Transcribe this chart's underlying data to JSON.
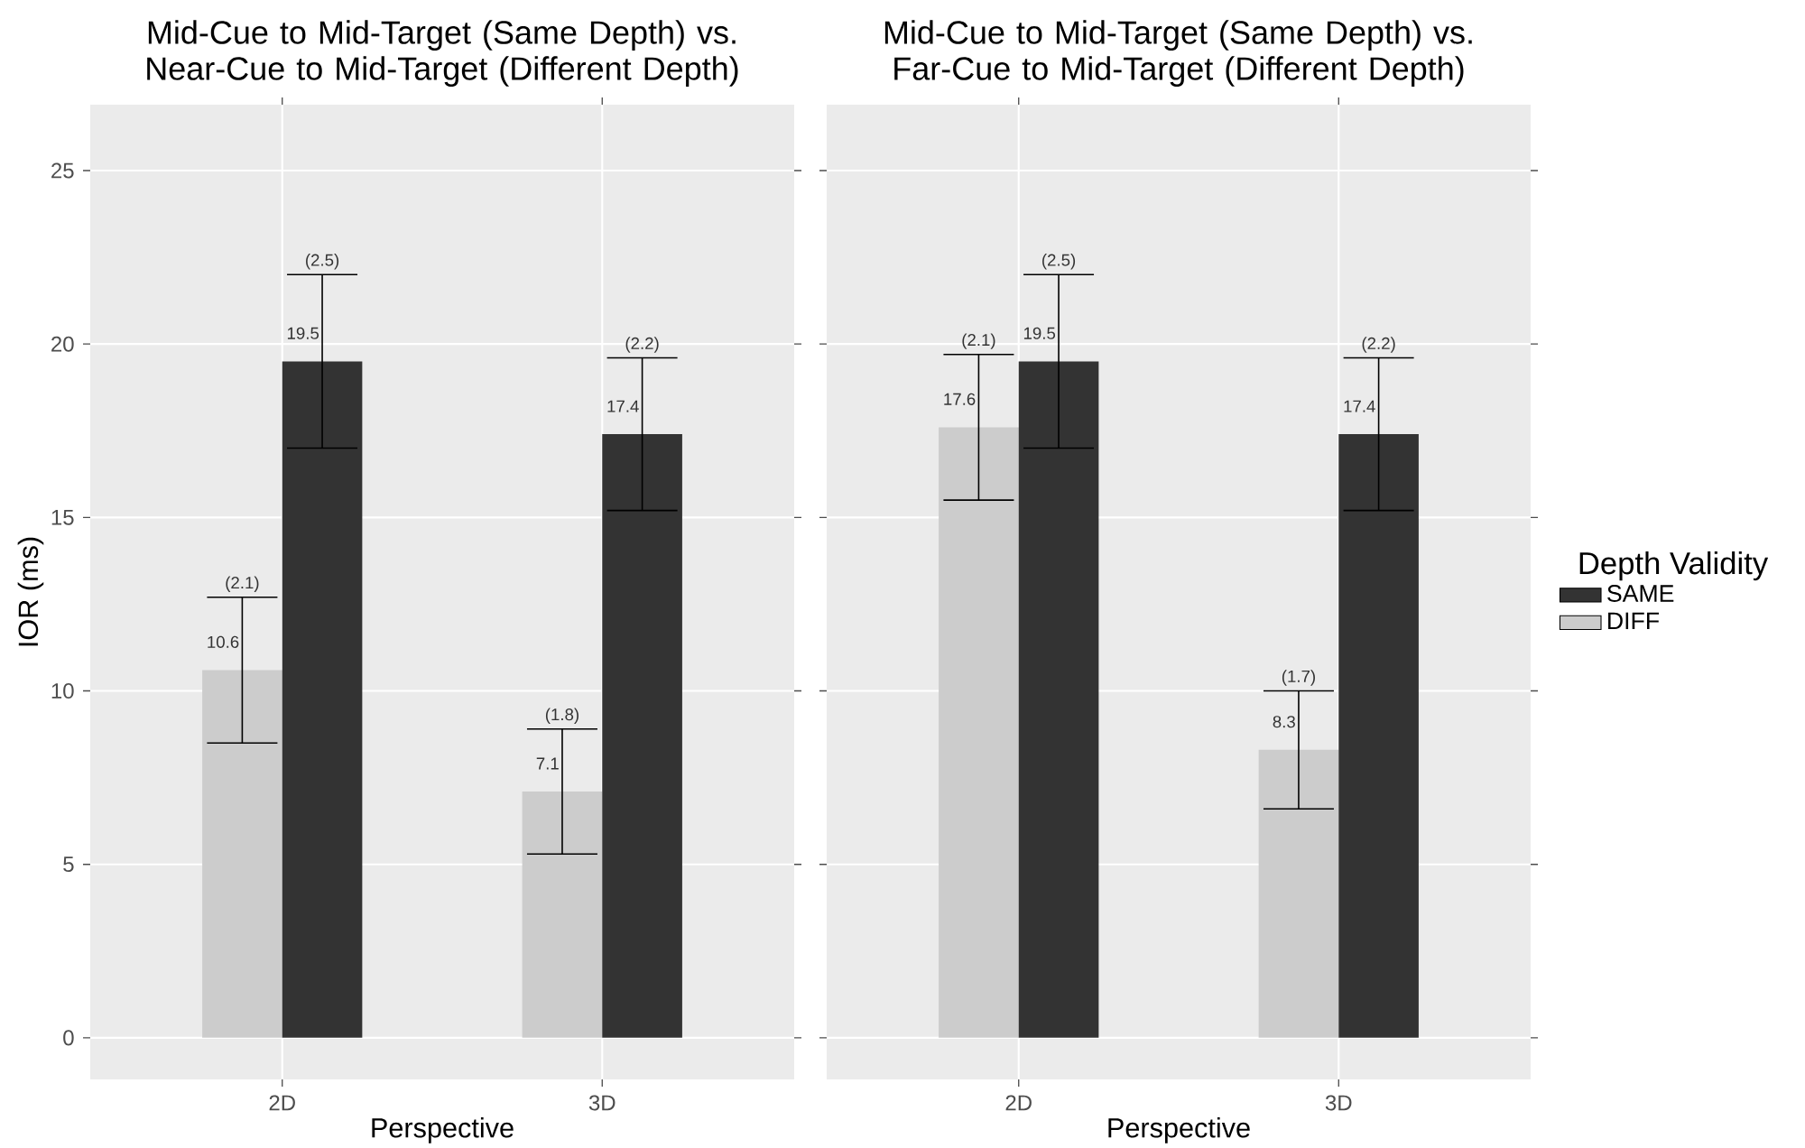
{
  "chart_data": [
    {
      "type": "bar",
      "title": "Mid-Cue to Mid-Target (Same Depth) vs. Near-Cue to Mid-Target (Different Depth)",
      "xlabel": "Perspective",
      "ylabel": "IOR (ms)",
      "categories": [
        "2D",
        "3D"
      ],
      "series": [
        {
          "color": "#cccccc",
          "values": [
            10.6,
            7.1
          ],
          "errors": [
            2.1,
            1.8
          ]
        },
        {
          "color": "#333333",
          "values": [
            19.5,
            17.4
          ],
          "errors": [
            2.5,
            2.2
          ]
        }
      ],
      "ylim": [
        -1.2,
        26.9
      ],
      "yticks": [
        0,
        5,
        10,
        15,
        20,
        25
      ],
      "grid": true,
      "data_labels": true,
      "legend": false,
      "annotations": [
        {
          "text": "(2.1)",
          "x": "2D",
          "y": 12.7
        },
        {
          "text": "(2.5)",
          "x": "2D",
          "y": 22.0
        },
        {
          "text": "(1.8)",
          "x": "3D",
          "y": 8.9
        },
        {
          "text": "(2.2)",
          "x": "3D",
          "y": 19.6
        }
      ]
    },
    {
      "type": "bar",
      "title": "Mid-Cue to Mid-Target (Same Depth) vs. Far-Cue to Mid-Target (Different Depth)",
      "xlabel": "Perspective",
      "categories": [
        "2D",
        "3D"
      ],
      "series": [
        {
          "name": "DIFF",
          "color": "#cccccc",
          "values": [
            17.6,
            8.3
          ],
          "errors": [
            2.1,
            1.7
          ]
        },
        {
          "name": "SAME",
          "color": "#333333",
          "values": [
            19.5,
            17.4
          ],
          "errors": [
            2.5,
            2.2
          ]
        }
      ],
      "ylim": [
        -1.2,
        26.9
      ],
      "yticks": [
        0,
        5,
        10,
        15,
        20,
        25
      ],
      "tick_labels": "x",
      "grid": true,
      "data_labels": true,
      "legend": "right",
      "legend_title": "Depth Validity",
      "annotations": [
        {
          "text": "(2.1)",
          "x": "2D",
          "y": 19.7
        },
        {
          "text": "(2.5)",
          "x": "2D",
          "y": 22.0
        },
        {
          "text": "(1.7)",
          "x": "3D",
          "y": 10.0
        },
        {
          "text": "(2.2)",
          "x": "3D",
          "y": 19.6
        }
      ]
    }
  ]
}
